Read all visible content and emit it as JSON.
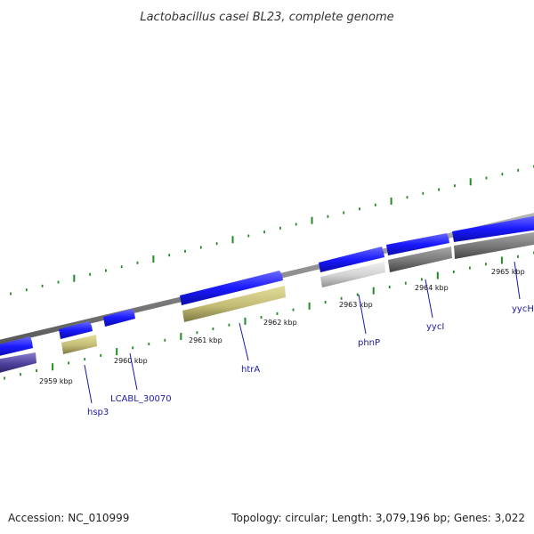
{
  "title": "Lactobacillus casei BL23, complete genome",
  "footer": {
    "accession": "Accession: NC_010999",
    "summary": "Topology: circular; Length: 3,079,196 bp; Genes: 3,022"
  },
  "scale_labels": [
    "2959 kbp",
    "2960 kbp",
    "2961 kbp",
    "2962 kbp",
    "2963 kbp",
    "2964 kbp",
    "2965 kbp"
  ],
  "gene_labels": [
    "hsp3",
    "LCABL_30070",
    "htrA",
    "phnP",
    "yycI",
    "yycH"
  ],
  "colors": {
    "backbone": "#8c8c8c",
    "forward_strand": "#1a1aff",
    "cog_olive": "#bdb76b",
    "cog_grey": "#777777",
    "cog_lightgrey": "#cfcfcf",
    "cog_purple": "#4b3f9a",
    "tick": "#228b22",
    "label_link": "#1a1aa6"
  }
}
